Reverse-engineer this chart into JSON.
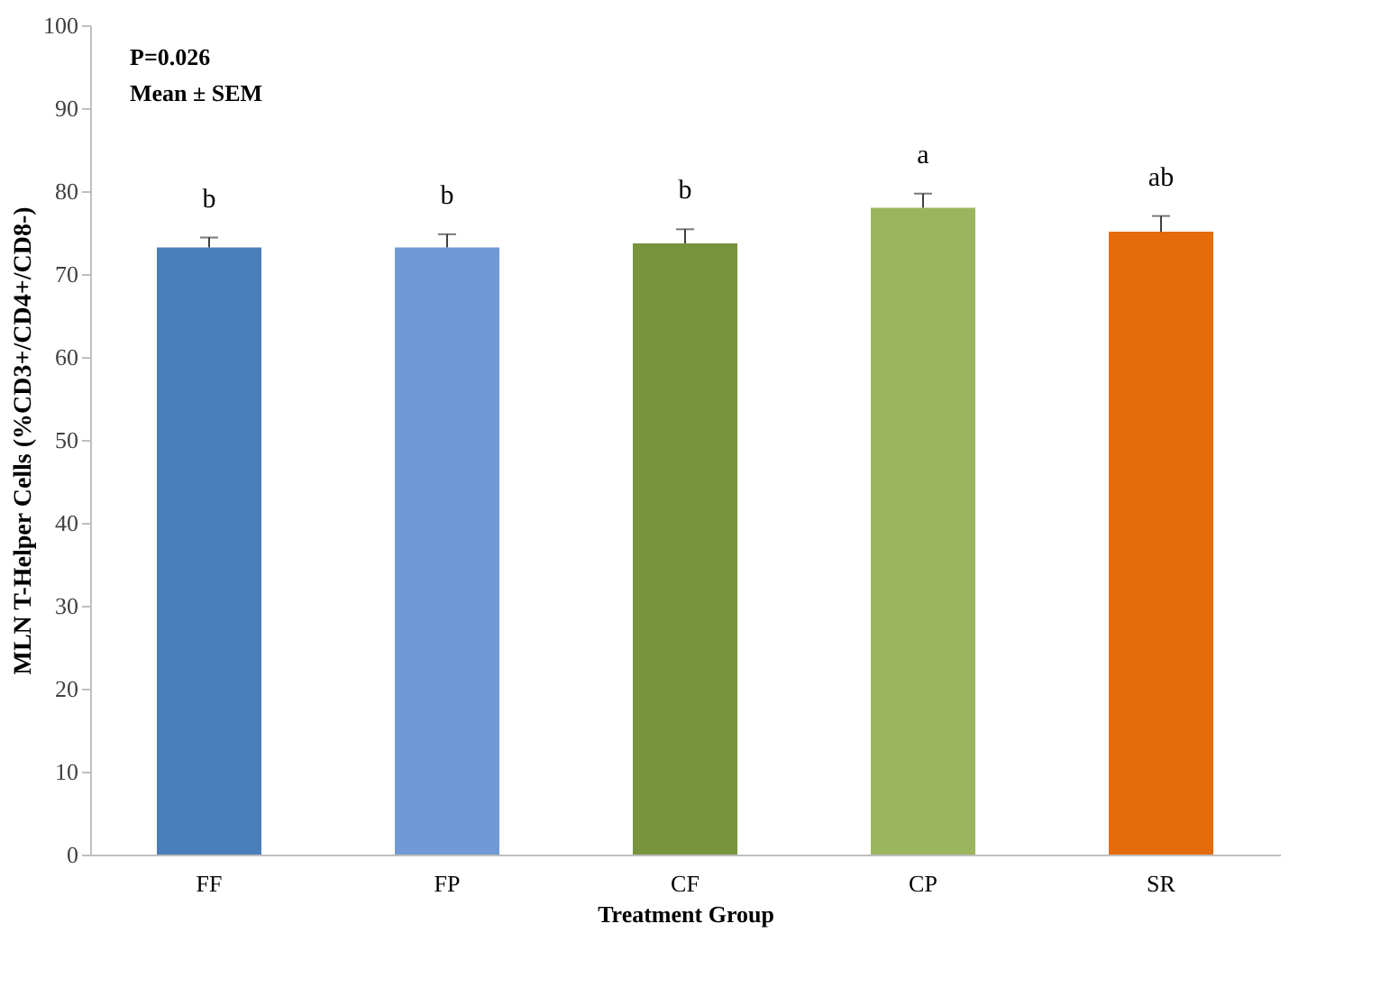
{
  "chart_data": {
    "type": "bar",
    "xlabel": "Treatment Group",
    "ylabel": "MLN T-Helper Cells (%CD3+/CD4+/CD8-)",
    "categories": [
      "FF",
      "FP",
      "CF",
      "CP",
      "SR"
    ],
    "values": [
      73.2,
      73.2,
      73.7,
      78.0,
      75.1
    ],
    "colors": [
      "#4a7ebb",
      "#6f9ad6",
      "#77933c",
      "#9ab55e",
      "#e46c0a"
    ],
    "errors": [
      [
        73.2,
        74.4
      ],
      [
        73.2,
        74.8
      ],
      [
        73.7,
        75.4
      ],
      [
        78.0,
        79.7
      ],
      [
        75.1,
        77.0
      ]
    ],
    "value_labels": [
      "b",
      "b",
      "b",
      "a",
      "ab"
    ],
    "annotations": [
      "P=0.026",
      "Mean ± SEM"
    ],
    "ylim": [
      0,
      100
    ],
    "yticks": [
      0,
      10,
      20,
      30,
      40,
      50,
      60,
      70,
      80,
      90,
      100
    ],
    "grid": false
  }
}
